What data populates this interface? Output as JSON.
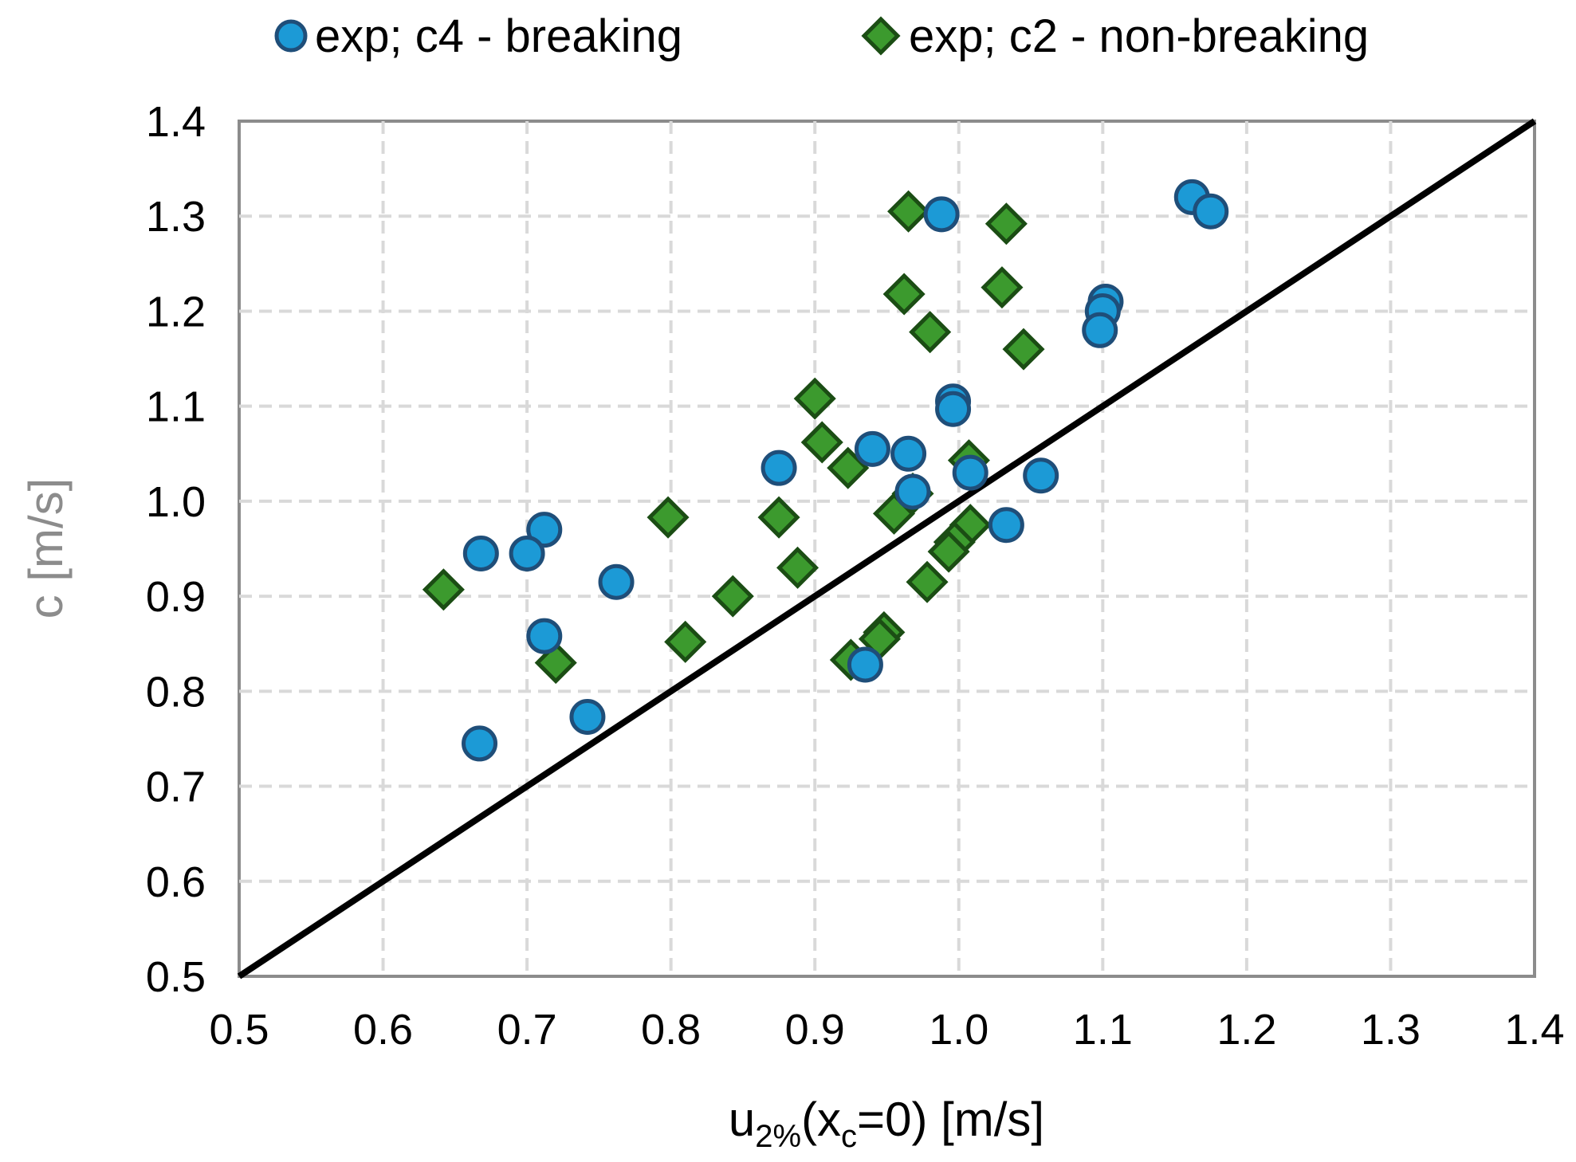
{
  "chart_data": {
    "type": "scatter",
    "xlabel": {
      "main": "u",
      "sub1": "2%",
      "mid": "(x",
      "sub2": "c",
      "tail": "=0)  [m/s]"
    },
    "ylabel": "c [m/s]",
    "xlim": [
      0.5,
      1.4
    ],
    "ylim": [
      0.5,
      1.4
    ],
    "xticks": [
      "0.5",
      "0.6",
      "0.7",
      "0.8",
      "0.9",
      "1.0",
      "1.1",
      "1.2",
      "1.3",
      "1.4"
    ],
    "yticks": [
      "0.5",
      "0.6",
      "0.7",
      "0.8",
      "0.9",
      "1.0",
      "1.1",
      "1.2",
      "1.3",
      "1.4"
    ],
    "grid": true,
    "legend_position": "top",
    "reference_line": {
      "name": "1:1 line",
      "x": [
        0.5,
        1.4
      ],
      "y": [
        0.5,
        1.4
      ],
      "color": "#000000"
    },
    "series": [
      {
        "name": "exp; c4 - breaking",
        "marker": "circle",
        "color": "#1c9ad6",
        "edge_color": "#1f4e79",
        "points": [
          [
            0.988,
            1.302
          ],
          [
            1.162,
            1.32
          ],
          [
            1.175,
            1.305
          ],
          [
            1.102,
            1.21
          ],
          [
            1.1,
            1.2
          ],
          [
            1.098,
            1.18
          ],
          [
            0.996,
            1.105
          ],
          [
            0.996,
            1.097
          ],
          [
            0.94,
            1.055
          ],
          [
            0.965,
            1.05
          ],
          [
            0.875,
            1.035
          ],
          [
            0.968,
            1.01
          ],
          [
            1.008,
            1.03
          ],
          [
            1.057,
            1.027
          ],
          [
            1.033,
            0.975
          ],
          [
            0.712,
            0.97
          ],
          [
            0.7,
            0.945
          ],
          [
            0.668,
            0.945
          ],
          [
            0.762,
            0.915
          ],
          [
            0.712,
            0.858
          ],
          [
            0.935,
            0.828
          ],
          [
            0.742,
            0.773
          ],
          [
            0.667,
            0.745
          ]
        ]
      },
      {
        "name": "exp; c2 - non-breaking",
        "marker": "diamond",
        "color": "#3c9a2e",
        "edge_color": "#1b4d14",
        "points": [
          [
            0.965,
            1.305
          ],
          [
            1.033,
            1.292
          ],
          [
            0.962,
            1.218
          ],
          [
            1.03,
            1.225
          ],
          [
            0.98,
            1.178
          ],
          [
            1.045,
            1.16
          ],
          [
            0.9,
            1.108
          ],
          [
            0.905,
            1.062
          ],
          [
            0.923,
            1.035
          ],
          [
            1.007,
            1.043
          ],
          [
            0.968,
            1.008
          ],
          [
            0.798,
            0.983
          ],
          [
            0.875,
            0.983
          ],
          [
            0.955,
            0.987
          ],
          [
            1.008,
            0.975
          ],
          [
            0.997,
            0.957
          ],
          [
            0.993,
            0.947
          ],
          [
            0.888,
            0.93
          ],
          [
            0.843,
            0.9
          ],
          [
            0.978,
            0.915
          ],
          [
            0.642,
            0.907
          ],
          [
            0.81,
            0.852
          ],
          [
            0.948,
            0.862
          ],
          [
            0.945,
            0.855
          ],
          [
            0.72,
            0.83
          ],
          [
            0.925,
            0.833
          ]
        ]
      }
    ]
  }
}
